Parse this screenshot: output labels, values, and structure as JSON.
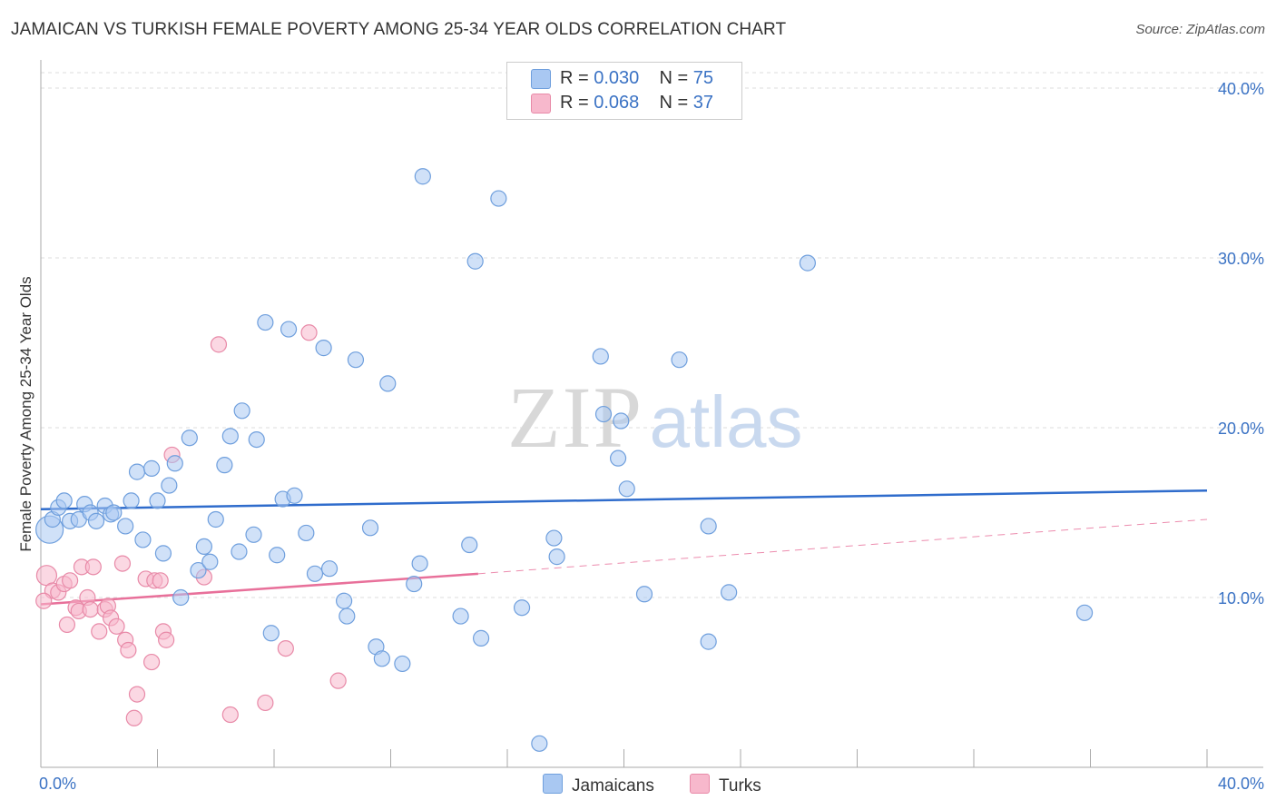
{
  "title": "JAMAICAN VS TURKISH FEMALE POVERTY AMONG 25-34 YEAR OLDS CORRELATION CHART",
  "source": "Source: ZipAtlas.com",
  "watermark": {
    "zip": "ZIP",
    "atlas": "atlas"
  },
  "colors": {
    "jamaicans_fill": "#a9c8f2",
    "jamaicans_stroke": "#6f9fdd",
    "jamaicans_line": "#2f6ccc",
    "turks_fill": "#f7b8cc",
    "turks_stroke": "#e88aa8",
    "turks_line": "#e8709a",
    "accent_text": "#3a72c4"
  },
  "legend_top": [
    {
      "r_label": "R = ",
      "r_value": "0.030",
      "n_label": "N = ",
      "n_value": "75"
    },
    {
      "r_label": "R = ",
      "r_value": "0.068",
      "n_label": "N = ",
      "n_value": "37"
    }
  ],
  "chart_data": {
    "type": "scatter",
    "title": "JAMAICAN VS TURKISH FEMALE POVERTY AMONG 25-34 YEAR OLDS CORRELATION CHART",
    "xlabel": "",
    "ylabel": "Female Poverty Among 25-34 Year Olds",
    "xlim": [
      0,
      40
    ],
    "ylim": [
      0,
      40
    ],
    "x_tick_labels": [
      "0.0%",
      "40.0%"
    ],
    "y_ticks": [
      10,
      20,
      30,
      40
    ],
    "y_tick_labels": [
      "10.0%",
      "20.0%",
      "30.0%",
      "40.0%"
    ],
    "grid": true,
    "legend_position": "bottom-center",
    "series": [
      {
        "name": "Jamaicans",
        "trend": {
          "x": [
            0,
            40
          ],
          "y": [
            15.2,
            16.3
          ]
        },
        "points": [
          [
            0.3,
            14.0
          ],
          [
            0.4,
            14.6
          ],
          [
            0.6,
            15.3
          ],
          [
            0.8,
            15.7
          ],
          [
            1.0,
            14.5
          ],
          [
            1.3,
            14.6
          ],
          [
            1.5,
            15.5
          ],
          [
            1.7,
            15.0
          ],
          [
            1.9,
            14.5
          ],
          [
            2.2,
            15.4
          ],
          [
            2.4,
            14.9
          ],
          [
            2.5,
            15.0
          ],
          [
            2.9,
            14.2
          ],
          [
            3.1,
            15.7
          ],
          [
            3.3,
            17.4
          ],
          [
            3.5,
            13.4
          ],
          [
            3.8,
            17.6
          ],
          [
            4.0,
            15.7
          ],
          [
            4.2,
            12.6
          ],
          [
            4.4,
            16.6
          ],
          [
            4.6,
            17.9
          ],
          [
            4.8,
            10.0
          ],
          [
            5.1,
            19.4
          ],
          [
            5.4,
            11.6
          ],
          [
            5.6,
            13.0
          ],
          [
            5.8,
            12.1
          ],
          [
            6.0,
            14.6
          ],
          [
            6.3,
            17.8
          ],
          [
            6.5,
            19.5
          ],
          [
            6.8,
            12.7
          ],
          [
            6.9,
            21.0
          ],
          [
            7.3,
            13.7
          ],
          [
            7.4,
            19.3
          ],
          [
            7.7,
            26.2
          ],
          [
            7.9,
            7.9
          ],
          [
            8.1,
            12.5
          ],
          [
            8.3,
            15.8
          ],
          [
            8.5,
            25.8
          ],
          [
            8.7,
            16.0
          ],
          [
            9.1,
            13.8
          ],
          [
            9.4,
            11.4
          ],
          [
            9.7,
            24.7
          ],
          [
            9.9,
            11.7
          ],
          [
            10.4,
            9.8
          ],
          [
            10.5,
            8.9
          ],
          [
            10.8,
            24.0
          ],
          [
            11.3,
            14.1
          ],
          [
            11.5,
            7.1
          ],
          [
            11.7,
            6.4
          ],
          [
            11.9,
            22.6
          ],
          [
            12.4,
            6.1
          ],
          [
            12.8,
            10.8
          ],
          [
            13.0,
            12.0
          ],
          [
            13.1,
            34.8
          ],
          [
            14.4,
            8.9
          ],
          [
            14.7,
            13.1
          ],
          [
            14.9,
            29.8
          ],
          [
            15.1,
            7.6
          ],
          [
            15.7,
            33.5
          ],
          [
            16.5,
            9.4
          ],
          [
            17.1,
            1.4
          ],
          [
            17.6,
            13.5
          ],
          [
            17.7,
            12.4
          ],
          [
            19.2,
            24.2
          ],
          [
            19.3,
            20.8
          ],
          [
            19.8,
            18.2
          ],
          [
            19.9,
            20.4
          ],
          [
            20.1,
            16.4
          ],
          [
            20.7,
            10.2
          ],
          [
            21.9,
            24.0
          ],
          [
            22.9,
            14.2
          ],
          [
            22.9,
            7.4
          ],
          [
            23.6,
            10.3
          ],
          [
            26.3,
            29.7
          ],
          [
            35.8,
            9.1
          ]
        ]
      },
      {
        "name": "Turks",
        "trend": {
          "x": [
            0,
            15
          ],
          "y": [
            9.6,
            11.4
          ]
        },
        "trend_dashed": {
          "x": [
            15,
            40
          ],
          "y": [
            11.4,
            14.6
          ]
        },
        "points": [
          [
            0.2,
            11.3
          ],
          [
            0.4,
            10.4
          ],
          [
            0.6,
            10.3
          ],
          [
            0.8,
            10.8
          ],
          [
            0.9,
            8.4
          ],
          [
            1.0,
            11.0
          ],
          [
            1.2,
            9.4
          ],
          [
            1.3,
            9.2
          ],
          [
            1.4,
            11.8
          ],
          [
            1.6,
            10.0
          ],
          [
            1.7,
            9.3
          ],
          [
            1.8,
            11.8
          ],
          [
            2.0,
            8.0
          ],
          [
            2.2,
            9.3
          ],
          [
            2.3,
            9.5
          ],
          [
            2.4,
            8.8
          ],
          [
            2.6,
            8.3
          ],
          [
            2.8,
            12.0
          ],
          [
            2.9,
            7.5
          ],
          [
            3.0,
            6.9
          ],
          [
            3.2,
            2.9
          ],
          [
            3.3,
            4.3
          ],
          [
            3.6,
            11.1
          ],
          [
            3.8,
            6.2
          ],
          [
            3.9,
            11.0
          ],
          [
            4.1,
            11.0
          ],
          [
            4.2,
            8.0
          ],
          [
            4.3,
            7.5
          ],
          [
            4.5,
            18.4
          ],
          [
            5.6,
            11.2
          ],
          [
            6.1,
            24.9
          ],
          [
            6.5,
            3.1
          ],
          [
            7.7,
            3.8
          ],
          [
            8.4,
            7.0
          ],
          [
            9.2,
            25.6
          ],
          [
            10.2,
            5.1
          ],
          [
            0.1,
            9.8
          ]
        ]
      }
    ]
  },
  "legend_bottom": [
    {
      "label": "Jamaicans"
    },
    {
      "label": "Turks"
    }
  ]
}
